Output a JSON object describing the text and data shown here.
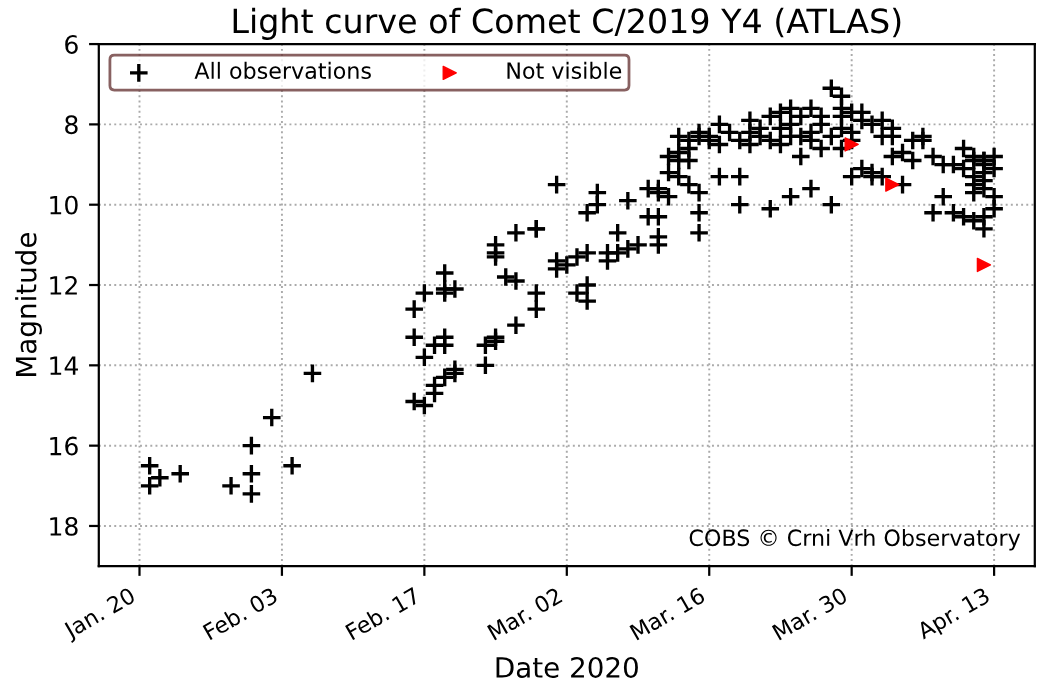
{
  "chart_data": {
    "type": "scatter",
    "title": "Light curve of Comet C/2019 Y4 (ATLAS)",
    "xlabel": "Date 2020",
    "ylabel": "Magnitude",
    "xlim": [
      "2020-01-16",
      "2020-04-17"
    ],
    "ylim": [
      19,
      6
    ],
    "yticks": [
      6,
      8,
      10,
      12,
      14,
      16,
      18
    ],
    "xticks": [
      {
        "value": "2020-01-20",
        "label": "Jan. 20"
      },
      {
        "value": "2020-02-03",
        "label": "Feb. 03"
      },
      {
        "value": "2020-02-17",
        "label": "Feb. 17"
      },
      {
        "value": "2020-03-02",
        "label": "Mar. 02"
      },
      {
        "value": "2020-03-16",
        "label": "Mar. 16"
      },
      {
        "value": "2020-03-30",
        "label": "Mar. 30"
      },
      {
        "value": "2020-04-13",
        "label": "Apr. 13"
      }
    ],
    "grid": true,
    "legend": "top left",
    "line_style": "dotted",
    "annotations": [
      "COBS © Crni Vrh Observatory"
    ],
    "series": [
      {
        "name": "All observations",
        "color": "#000000",
        "marker": "cross",
        "x": [
          "2020-01-21",
          "2020-01-21",
          "2020-01-22",
          "2020-01-24",
          "2020-01-29",
          "2020-01-31",
          "2020-01-31",
          "2020-01-31",
          "2020-02-02",
          "2020-02-04",
          "2020-02-06",
          "2020-02-16",
          "2020-02-16",
          "2020-02-16",
          "2020-02-17",
          "2020-02-17",
          "2020-02-17",
          "2020-02-18",
          "2020-02-18",
          "2020-02-18",
          "2020-02-19",
          "2020-02-19",
          "2020-02-19",
          "2020-02-19",
          "2020-02-19",
          "2020-02-19",
          "2020-02-20",
          "2020-02-20",
          "2020-02-20",
          "2020-02-23",
          "2020-02-23",
          "2020-02-24",
          "2020-02-24",
          "2020-02-24",
          "2020-02-24",
          "2020-02-24",
          "2020-02-25",
          "2020-02-26",
          "2020-02-26",
          "2020-02-26",
          "2020-02-28",
          "2020-02-28",
          "2020-02-28",
          "2020-02-28",
          "2020-03-01",
          "2020-03-01",
          "2020-03-01",
          "2020-03-02",
          "2020-03-03",
          "2020-03-03",
          "2020-03-04",
          "2020-03-04",
          "2020-03-04",
          "2020-03-05",
          "2020-03-05",
          "2020-03-04",
          "2020-03-06",
          "2020-03-06",
          "2020-03-07",
          "2020-03-07",
          "2020-03-08",
          "2020-03-08",
          "2020-03-09",
          "2020-03-10",
          "2020-03-10",
          "2020-03-11",
          "2020-03-11",
          "2020-03-11",
          "2020-03-11",
          "2020-03-11",
          "2020-03-12",
          "2020-03-12",
          "2020-03-12",
          "2020-03-13",
          "2020-03-13",
          "2020-03-13",
          "2020-03-14",
          "2020-03-14",
          "2020-03-15",
          "2020-03-15",
          "2020-03-14",
          "2020-03-15",
          "2020-03-15",
          "2020-03-15",
          "2020-03-16",
          "2020-03-16",
          "2020-03-17",
          "2020-03-17",
          "2020-03-17",
          "2020-03-19",
          "2020-03-19",
          "2020-03-19",
          "2020-03-20",
          "2020-03-20",
          "2020-03-21",
          "2020-03-22",
          "2020-03-22",
          "2020-03-22",
          "2020-03-23",
          "2020-03-23",
          "2020-03-23",
          "2020-03-24",
          "2020-03-24",
          "2020-03-24",
          "2020-03-24",
          "2020-03-25",
          "2020-03-25",
          "2020-03-25",
          "2020-03-26",
          "2020-03-26",
          "2020-03-26",
          "2020-03-27",
          "2020-03-27",
          "2020-03-28",
          "2020-03-28",
          "2020-03-28",
          "2020-03-29",
          "2020-03-29",
          "2020-03-29",
          "2020-03-29",
          "2020-03-29",
          "2020-03-30",
          "2020-03-30",
          "2020-03-30",
          "2020-03-30",
          "2020-03-31",
          "2020-03-31",
          "2020-03-31",
          "2020-04-01",
          "2020-04-01",
          "2020-04-01",
          "2020-04-02",
          "2020-04-02",
          "2020-04-02",
          "2020-04-03",
          "2020-04-03",
          "2020-04-03",
          "2020-04-04",
          "2020-04-04",
          "2020-04-05",
          "2020-04-05",
          "2020-04-06",
          "2020-04-06",
          "2020-04-07",
          "2020-04-07",
          "2020-04-08",
          "2020-04-08",
          "2020-04-09",
          "2020-04-09",
          "2020-04-10",
          "2020-04-10",
          "2020-04-10",
          "2020-04-11",
          "2020-04-11",
          "2020-04-11",
          "2020-04-11",
          "2020-04-12",
          "2020-04-12",
          "2020-04-12",
          "2020-04-12",
          "2020-04-12",
          "2020-04-12",
          "2020-04-12",
          "2020-04-13",
          "2020-04-13",
          "2020-04-13",
          "2020-03-18",
          "2020-03-20",
          "2020-03-21",
          "2020-03-26",
          "2020-03-27",
          "2020-04-11",
          "2020-04-11",
          "2020-04-12",
          "2020-04-13",
          "2020-03-13",
          "2020-03-14"
        ],
        "values": [
          16.5,
          17.0,
          16.8,
          16.7,
          17.0,
          16.0,
          16.7,
          17.2,
          15.3,
          16.5,
          14.2,
          12.6,
          13.3,
          14.9,
          15.0,
          13.8,
          12.2,
          14.7,
          14.5,
          13.5,
          14.3,
          13.3,
          13.5,
          11.7,
          12.1,
          12.2,
          12.1,
          14.2,
          14.1,
          14.0,
          13.5,
          11.3,
          11.0,
          11.2,
          13.3,
          13.4,
          11.8,
          11.9,
          10.7,
          13.0,
          10.6,
          10.6,
          12.2,
          12.6,
          9.5,
          11.4,
          11.6,
          11.5,
          11.3,
          12.2,
          12.4,
          12.0,
          10.2,
          10.0,
          9.7,
          11.2,
          11.2,
          11.4,
          10.7,
          11.2,
          11.1,
          9.9,
          11.0,
          9.6,
          10.3,
          9.7,
          10.8,
          10.3,
          11.0,
          9.6,
          9.2,
          9.8,
          8.8,
          9.3,
          8.9,
          8.7,
          8.6,
          8.4,
          10.2,
          10.7,
          9.5,
          9.7,
          8.3,
          8.2,
          8.4,
          8.3,
          9.3,
          8.5,
          8.0,
          10.0,
          8.4,
          9.3,
          7.9,
          8.2,
          8.1,
          7.8,
          10.1,
          8.4,
          8.5,
          7.7,
          8.1,
          9.8,
          8.3,
          7.6,
          8.0,
          8.8,
          7.8,
          8.3,
          7.6,
          9.6,
          8.4,
          8.0,
          7.8,
          10.0,
          8.3,
          7.1,
          7.3,
          7.6,
          8.1,
          7.8,
          8.6,
          9.3,
          7.7,
          8.4,
          8.2,
          7.9,
          9.1,
          7.7,
          9.2,
          8.0,
          9.3,
          8.3,
          9.3,
          7.9,
          8.1,
          8.3,
          8.8,
          9.5,
          8.7,
          8.4,
          8.9,
          8.4,
          8.3,
          10.2,
          8.8,
          9.8,
          9.0,
          9.0,
          10.2,
          10.3,
          8.6,
          9.1,
          8.8,
          9.3,
          10.4,
          8.9,
          10.6,
          9.0,
          8.9,
          9.2,
          9.4,
          10.3,
          8.9,
          8.8,
          9.8,
          10.1,
          8.2,
          8.5,
          8.3,
          8.2,
          8.6,
          9.5,
          9.7,
          9.6,
          9.1,
          8.3,
          8.9
        ]
      },
      {
        "name": "Not visible",
        "color": "#ff0000",
        "marker": "triangle",
        "x": [
          "2020-03-30",
          "2020-04-03",
          "2020-04-12"
        ],
        "values": [
          8.5,
          9.5,
          11.5
        ]
      }
    ]
  }
}
